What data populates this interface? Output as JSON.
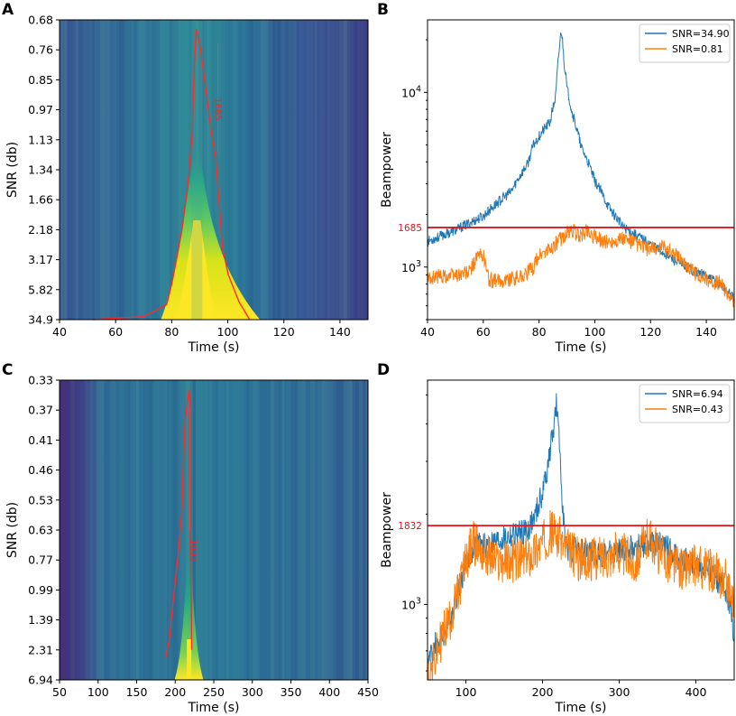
{
  "chart_data": [
    {
      "panel": "A",
      "type": "heatmap",
      "xlabel": "Time (s)",
      "ylabel": "SNR (db)",
      "xlim": [
        40,
        150
      ],
      "xticks": [
        40,
        60,
        80,
        100,
        120,
        140
      ],
      "yticks": [
        "0.68",
        "0.76",
        "0.85",
        "0.97",
        "1.13",
        "1.34",
        "1.66",
        "2.18",
        "3.17",
        "5.82",
        "34.9"
      ],
      "contour_label": "1685",
      "peak_time": 89,
      "signal_onset": 80,
      "contour_x": [
        52,
        60,
        70,
        78,
        80,
        82,
        84,
        86,
        87,
        88,
        89,
        90,
        92,
        94,
        96,
        98,
        100,
        104,
        108
      ],
      "contour_y": [
        10.0,
        9.95,
        9.9,
        9.5,
        8.8,
        7.9,
        7.0,
        5.5,
        3.8,
        1.8,
        0.3,
        0.9,
        2.2,
        3.8,
        4.6,
        7.6,
        8.5,
        9.4,
        10.0
      ]
    },
    {
      "panel": "B",
      "type": "line",
      "xlabel": "Time (s)",
      "ylabel": "Beampower",
      "xlim": [
        40,
        150
      ],
      "xticks": [
        40,
        60,
        80,
        100,
        120,
        140
      ],
      "ylog": true,
      "ylim": [
        500,
        26000
      ],
      "yticks": [
        "10^3",
        "10^4"
      ],
      "threshold": 1685,
      "threshold_label": "1685",
      "legend_position": "top-right",
      "series": [
        {
          "name": "SNR=34.90",
          "color": "#1f77b4",
          "x": [
            40,
            50,
            60,
            70,
            76,
            78,
            80,
            84,
            86,
            87,
            88,
            89,
            90,
            92,
            95,
            100,
            105,
            110,
            120,
            130,
            140,
            145,
            150
          ],
          "y": [
            1400,
            1620,
            1950,
            2700,
            3900,
            5000,
            5600,
            6800,
            9500,
            16000,
            23000,
            15000,
            10500,
            7500,
            4900,
            3100,
            2200,
            1700,
            1350,
            1050,
            880,
            790,
            660
          ]
        },
        {
          "name": "SNR=0.81",
          "color": "#ff7f0e",
          "x": [
            40,
            45,
            50,
            55,
            58,
            60,
            62,
            65,
            70,
            75,
            78,
            80,
            84,
            88,
            90,
            92,
            95,
            97,
            100,
            105,
            110,
            115,
            120,
            125,
            130,
            135,
            140,
            145,
            150
          ],
          "y": [
            860,
            890,
            900,
            930,
            1150,
            1180,
            840,
            830,
            860,
            900,
            1000,
            1160,
            1260,
            1450,
            1550,
            1620,
            1480,
            1640,
            1480,
            1380,
            1450,
            1350,
            1250,
            1300,
            1150,
            950,
            850,
            800,
            620
          ]
        }
      ]
    },
    {
      "panel": "C",
      "type": "heatmap",
      "xlabel": "Time (s)",
      "ylabel": "SNR (db)",
      "xlim": [
        50,
        450
      ],
      "xticks": [
        50,
        100,
        150,
        200,
        250,
        300,
        350,
        400,
        450
      ],
      "yticks": [
        "0.33",
        "0.37",
        "0.41",
        "0.46",
        "0.53",
        "0.63",
        "0.77",
        "0.99",
        "1.39",
        "2.31",
        "6.94"
      ],
      "contour_label": "1832",
      "peak_time": 218,
      "contour_x": [
        187,
        192,
        198,
        204,
        208,
        211,
        213,
        215,
        217,
        218,
        219,
        220,
        221,
        222
      ],
      "contour_y": [
        9.3,
        8.6,
        7.4,
        5.8,
        4.3,
        2.8,
        1.4,
        0.7,
        0.3,
        0.8,
        2.0,
        4.5,
        7.0,
        9.0
      ]
    },
    {
      "panel": "D",
      "type": "line",
      "xlabel": "Time (s)",
      "ylabel": "Beampower",
      "xlim": [
        50,
        450
      ],
      "xticks": [
        100,
        200,
        300,
        400
      ],
      "ylog": true,
      "ylim": [
        560,
        5600
      ],
      "yticks": [
        "10^3"
      ],
      "threshold": 1832,
      "threshold_label": "1832",
      "legend_position": "top-right",
      "series": [
        {
          "name": "SNR=6.94",
          "color": "#1f77b4",
          "x": [
            50,
            60,
            70,
            80,
            90,
            100,
            110,
            120,
            140,
            160,
            180,
            190,
            200,
            205,
            210,
            215,
            218,
            222,
            226,
            230,
            240,
            260,
            280,
            300,
            320,
            340,
            360,
            380,
            400,
            420,
            440,
            450
          ],
          "y": [
            640,
            730,
            790,
            900,
            1120,
            1350,
            1560,
            1570,
            1620,
            1700,
            1760,
            1950,
            2350,
            2750,
            3250,
            4000,
            4600,
            3400,
            2200,
            1550,
            1520,
            1500,
            1470,
            1500,
            1560,
            1600,
            1550,
            1420,
            1350,
            1280,
            1100,
            800
          ]
        },
        {
          "name": "SNR=0.43",
          "color": "#ff7f0e",
          "x": [
            50,
            60,
            70,
            80,
            90,
            100,
            110,
            120,
            140,
            160,
            180,
            200,
            210,
            220,
            230,
            250,
            270,
            300,
            320,
            340,
            350,
            360,
            380,
            400,
            420,
            440,
            450
          ],
          "y": [
            560,
            650,
            800,
            900,
            1080,
            1400,
            1620,
            1500,
            1380,
            1400,
            1420,
            1600,
            1750,
            1700,
            1550,
            1400,
            1420,
            1500,
            1380,
            1700,
            1500,
            1420,
            1320,
            1350,
            1300,
            1200,
            1020
          ]
        }
      ]
    }
  ]
}
